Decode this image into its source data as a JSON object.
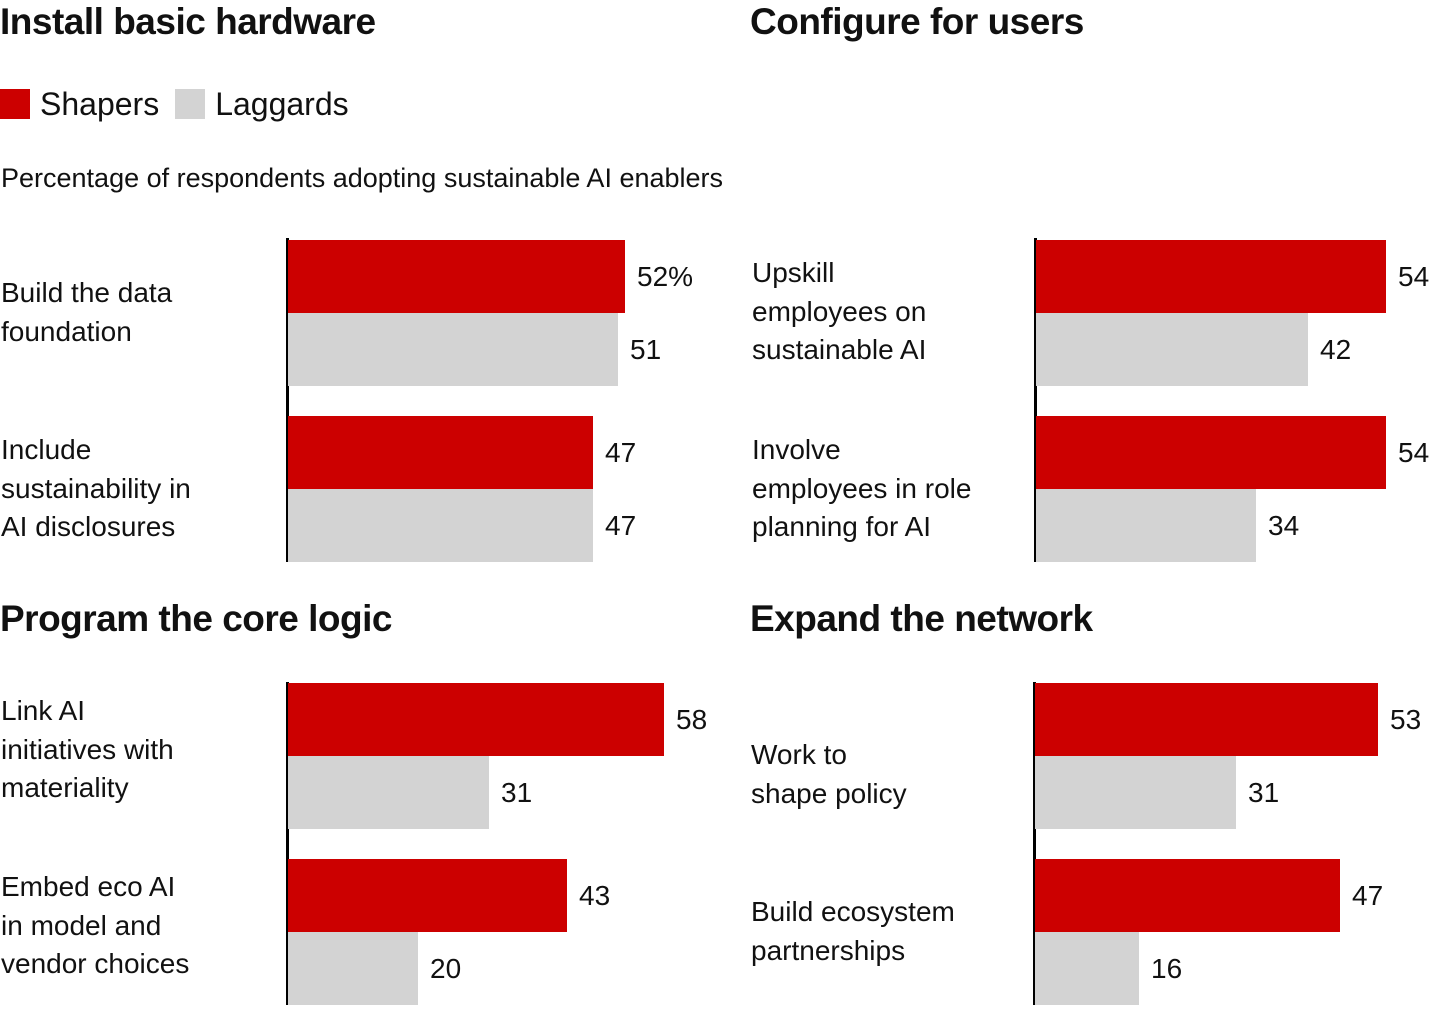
{
  "colors": {
    "shapers": "#CC0000",
    "laggards": "#D3D3D3",
    "axis": "#000000"
  },
  "legend": [
    {
      "name": "Shapers",
      "color": "#CC0000"
    },
    {
      "name": "Laggards",
      "color": "#D3D3D3"
    }
  ],
  "subtitle": "Percentage of respondents adopting sustainable AI enablers",
  "chart_data": {
    "type": "bar",
    "orientation": "horizontal",
    "subtitle": "Percentage of respondents adopting sustainable AI enablers",
    "unit": "%",
    "legend": [
      "Shapers",
      "Laggards"
    ],
    "legend_position": "top-left",
    "grid": false,
    "xlim": [
      0,
      60
    ],
    "panels": [
      {
        "title": "Install basic hardware",
        "categories": [
          "Build the data\nfoundation",
          "Include\nsustainability in\nAI disclosures"
        ],
        "series": [
          {
            "name": "Shapers",
            "values": [
              52,
              47
            ],
            "labels": [
              "52%",
              "47"
            ]
          },
          {
            "name": "Laggards",
            "values": [
              51,
              47
            ],
            "labels": [
              "51",
              "47"
            ]
          }
        ]
      },
      {
        "title": "Configure for users",
        "categories": [
          "Upskill\nemployees on\nsustainable AI",
          "Involve\nemployees in role\nplanning for AI"
        ],
        "series": [
          {
            "name": "Shapers",
            "values": [
              54,
              54
            ],
            "labels": [
              "54",
              "54"
            ]
          },
          {
            "name": "Laggards",
            "values": [
              42,
              34
            ],
            "labels": [
              "42",
              "34"
            ]
          }
        ]
      },
      {
        "title": "Program the core logic",
        "categories": [
          "Link AI\ninitiatives with\nmateriality",
          "Embed eco AI\nin model and\nvendor choices"
        ],
        "series": [
          {
            "name": "Shapers",
            "values": [
              58,
              43
            ],
            "labels": [
              "58",
              "43"
            ]
          },
          {
            "name": "Laggards",
            "values": [
              31,
              20
            ],
            "labels": [
              "31",
              "20"
            ]
          }
        ]
      },
      {
        "title": "Expand the network",
        "categories": [
          "Work to\nshape policy",
          "Build ecosystem\npartnerships"
        ],
        "series": [
          {
            "name": "Shapers",
            "values": [
              53,
              47
            ],
            "labels": [
              "53",
              "47"
            ]
          },
          {
            "name": "Laggards",
            "values": [
              31,
              16
            ],
            "labels": [
              "31",
              "16"
            ]
          }
        ]
      }
    ]
  }
}
